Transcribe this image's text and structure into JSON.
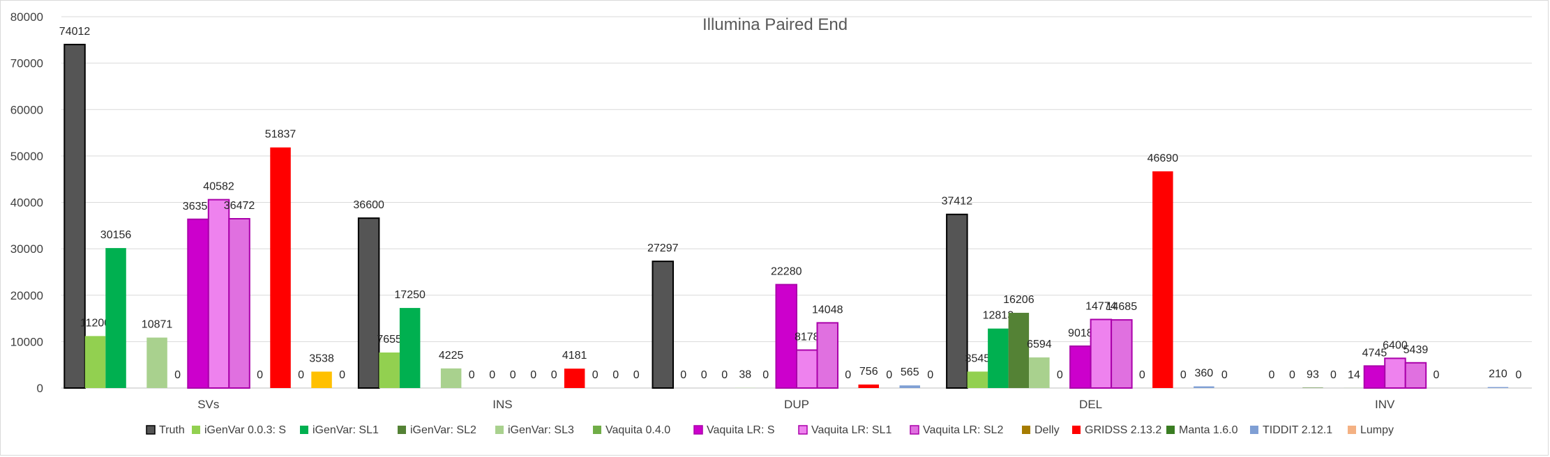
{
  "chart_data": {
    "type": "bar",
    "title": "Illumina Paired End",
    "xlabel": "",
    "ylabel": "",
    "ylim": [
      0,
      80000
    ],
    "yticks": [
      0,
      10000,
      20000,
      30000,
      40000,
      50000,
      60000,
      70000,
      80000
    ],
    "grid": true,
    "legend_position": "bottom",
    "categories": [
      "SVs",
      "INS",
      "DUP",
      "DEL",
      "INV"
    ],
    "series": [
      {
        "name": "Truth",
        "color": "#555555",
        "values": [
          74012,
          36600,
          27297,
          37412,
          null
        ]
      },
      {
        "name": "iGenVar 0.0.3: S",
        "color": "#92d050",
        "values": [
          11200,
          7655,
          0,
          3545,
          0
        ]
      },
      {
        "name": "iGenVar: SL1",
        "color": "#00b050",
        "values": [
          30156,
          17250,
          0,
          12813,
          0
        ]
      },
      {
        "name": "iGenVar: SL2",
        "color": "#548235",
        "values": [
          null,
          null,
          0,
          16206,
          93
        ]
      },
      {
        "name": "iGenVar: SL3",
        "color": "#a9d18e",
        "values": [
          10871,
          4225,
          38,
          6594,
          0
        ]
      },
      {
        "name": "Vaquita 0.4.0",
        "color": "#70ad47",
        "values": [
          0,
          0,
          0,
          0,
          14
        ]
      },
      {
        "name": "Vaquita LR: S",
        "color": "#cc00cc",
        "values": [
          36358,
          0,
          22280,
          9018,
          4745
        ]
      },
      {
        "name": "Vaquita LR: SL1",
        "color": "#ee82ee",
        "values": [
          40582,
          0,
          8178,
          14774,
          6400
        ]
      },
      {
        "name": "Vaquita LR: SL2",
        "color": "#e070e0",
        "values": [
          36472,
          0,
          14048,
          14685,
          5439
        ]
      },
      {
        "name": "Delly",
        "color": "#a67c00",
        "values": [
          0,
          0,
          0,
          0,
          0
        ]
      },
      {
        "name": "GRIDSS 2.13.2",
        "color": "#ff0000",
        "values": [
          51837,
          4181,
          756,
          46690,
          null
        ]
      },
      {
        "name": "Manta 1.6.0",
        "color": "#3a7d22",
        "values": [
          0,
          0,
          0,
          0,
          null
        ]
      },
      {
        "name": "TIDDIT 2.12.1",
        "color": "#7f9fd4",
        "values": [
          3538,
          0,
          565,
          360,
          210
        ]
      },
      {
        "name": "Lumpy",
        "color": "#f4b183",
        "values": [
          0,
          0,
          0,
          0,
          0
        ]
      }
    ],
    "highlight_color_svs_tiddit": "#ffc000"
  }
}
